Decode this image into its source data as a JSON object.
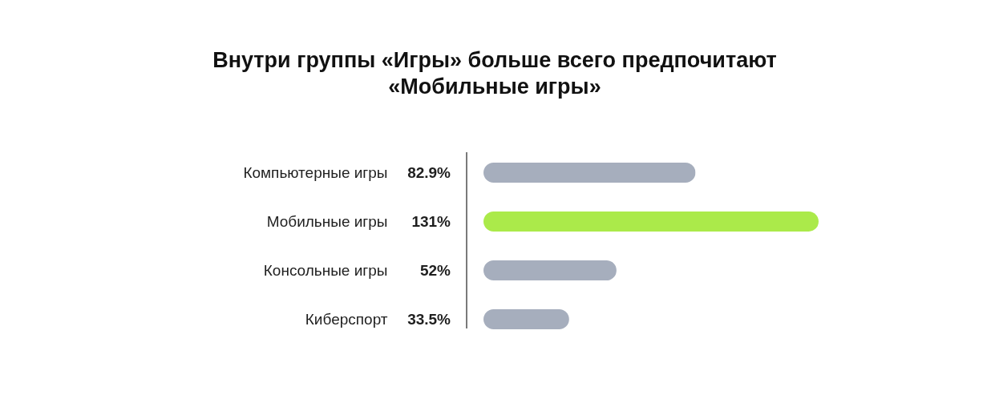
{
  "chart_data": {
    "type": "bar",
    "orientation": "horizontal",
    "title": "Внутри группы «Игры» больше всего предпочитают «Мобильные игры»",
    "categories": [
      "Компьютерные игры",
      "Мобильные игры",
      "Консольные игры",
      "Киберспорт"
    ],
    "values": [
      82.9,
      131,
      52,
      33.5
    ],
    "colors": [
      "#a6aebd",
      "#abea4a",
      "#a6aebd",
      "#a6aebd"
    ],
    "value_labels": [
      "82.9%",
      "131%",
      "52%",
      "33.5%"
    ]
  }
}
